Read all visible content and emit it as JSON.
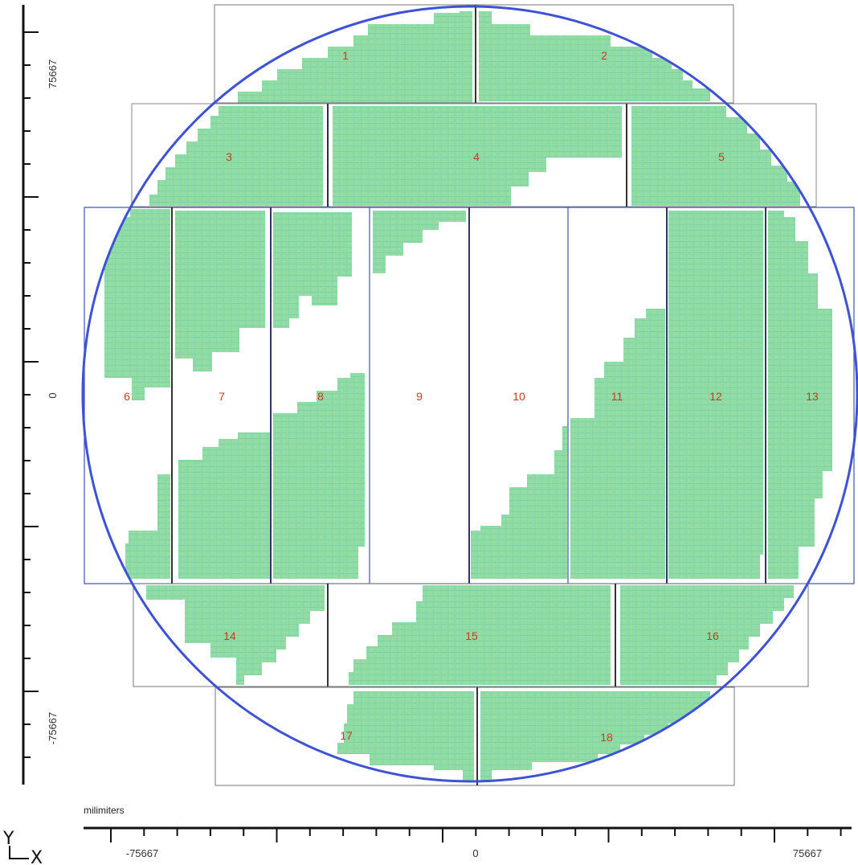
{
  "units_label": "milimiters",
  "axis_letters": {
    "y": "Y",
    "x": "X"
  },
  "x_axis": {
    "tick_labels": [
      "-75667",
      "0",
      "75667"
    ]
  },
  "y_axis": {
    "tick_labels": [
      "75667",
      "0",
      "-75667"
    ]
  },
  "colors": {
    "wafer_outline": "#3d52d5",
    "die_fill": "#8fdca8",
    "die_edge": "#7cc79a",
    "defect_speck": "#b8e04a",
    "region_label": "#cc3a1e",
    "field_border": "#333366"
  },
  "regions": [
    {
      "label": "1"
    },
    {
      "label": "2"
    },
    {
      "label": "3"
    },
    {
      "label": "4"
    },
    {
      "label": "5"
    },
    {
      "label": "6"
    },
    {
      "label": "7"
    },
    {
      "label": "8"
    },
    {
      "label": "9"
    },
    {
      "label": "10"
    },
    {
      "label": "11"
    },
    {
      "label": "12"
    },
    {
      "label": "13"
    },
    {
      "label": "14"
    },
    {
      "label": "15"
    },
    {
      "label": "16"
    },
    {
      "label": "17"
    },
    {
      "label": "18"
    }
  ]
}
